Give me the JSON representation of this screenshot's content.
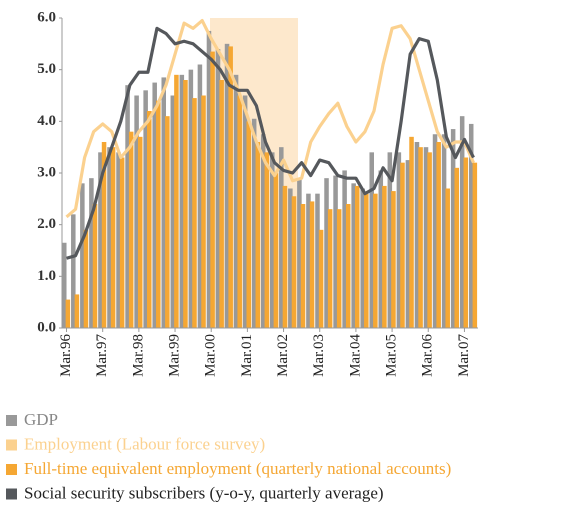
{
  "chart_data": {
    "type": "bar",
    "categories": [
      "Mar.96",
      null,
      null,
      null,
      "Mar.97",
      null,
      null,
      null,
      "Mar.98",
      null,
      null,
      null,
      "Mar.99",
      null,
      null,
      null,
      "Mar.00",
      null,
      null,
      null,
      "Mar.01",
      null,
      null,
      null,
      "Mar.02",
      null,
      null,
      null,
      "Mar.03",
      null,
      null,
      null,
      "Mar.04",
      null,
      null,
      null,
      "Mar.05",
      null,
      null,
      null,
      "Mar.06",
      null,
      null,
      null,
      "Mar.07",
      null
    ],
    "ylim": [
      0,
      6
    ],
    "yticks": [
      {
        "value": 0,
        "label": "0.0"
      },
      {
        "value": 1,
        "label": "1.0"
      },
      {
        "value": 2,
        "label": "2.0"
      },
      {
        "value": 3,
        "label": "3.0"
      },
      {
        "value": 4,
        "label": "4.0"
      },
      {
        "value": 5,
        "label": "5.0"
      },
      {
        "value": 6,
        "label": "6.0"
      }
    ],
    "grid": false,
    "series": [
      {
        "name": "GDP",
        "type": "bar",
        "color": "#999999",
        "values": [
          1.65,
          2.2,
          2.8,
          2.9,
          3.4,
          3.5,
          3.4,
          4.7,
          4.5,
          4.6,
          4.75,
          4.85,
          4.5,
          4.9,
          5.0,
          5.1,
          5.75,
          5.4,
          5.5,
          4.9,
          4.5,
          4.05,
          3.75,
          3.4,
          3.5,
          2.7,
          2.9,
          2.6,
          2.6,
          2.9,
          2.95,
          3.05,
          2.8,
          2.7,
          3.4,
          3.05,
          3.4,
          3.4,
          3.25,
          3.6,
          3.5,
          3.75,
          3.75,
          3.85,
          4.1,
          3.95
        ]
      },
      {
        "name": "Employment (Labour force survey)",
        "type": "line",
        "color": "#fbd18f",
        "values": [
          2.15,
          2.3,
          3.3,
          3.8,
          3.95,
          3.8,
          3.3,
          3.5,
          3.8,
          4.0,
          4.3,
          4.7,
          5.3,
          5.9,
          5.8,
          5.95,
          5.6,
          5.3,
          5.0,
          4.6,
          4.1,
          3.6,
          3.2,
          2.95,
          3.25,
          2.85,
          2.9,
          3.6,
          3.9,
          4.15,
          4.35,
          3.9,
          3.6,
          3.8,
          4.2,
          5.1,
          5.8,
          5.85,
          5.6,
          5.0,
          4.4,
          3.8,
          3.5,
          3.6,
          3.6,
          3.2
        ]
      },
      {
        "name": "Full-time equivalent employment (quarterly national accounts)",
        "type": "bar",
        "color": "#f5a733",
        "values": [
          0.55,
          0.65,
          1.9,
          2.4,
          3.6,
          3.5,
          3.3,
          3.8,
          3.7,
          4.2,
          4.4,
          4.1,
          4.9,
          4.8,
          4.45,
          4.5,
          5.35,
          4.8,
          5.45,
          4.5,
          4.0,
          3.6,
          3.4,
          3.0,
          2.75,
          2.55,
          2.4,
          2.45,
          1.9,
          2.3,
          2.3,
          2.4,
          2.75,
          2.6,
          2.6,
          2.75,
          2.65,
          3.2,
          3.7,
          3.5,
          3.4,
          3.6,
          2.7,
          3.1,
          3.3,
          3.2
        ]
      },
      {
        "name": "Social security subscribers (y-o-y, quarterly average)",
        "type": "line",
        "color": "#55585c",
        "values": [
          1.35,
          1.4,
          1.8,
          2.3,
          3.0,
          3.5,
          4.0,
          4.7,
          4.95,
          4.95,
          5.8,
          5.7,
          5.5,
          5.55,
          5.5,
          5.35,
          5.2,
          5.0,
          4.7,
          4.6,
          4.6,
          4.3,
          3.6,
          3.2,
          3.05,
          3.0,
          3.2,
          2.95,
          3.25,
          3.2,
          2.95,
          2.9,
          2.9,
          2.6,
          2.7,
          3.1,
          2.85,
          4.0,
          5.3,
          5.6,
          5.55,
          4.8,
          3.7,
          3.3,
          3.65,
          3.3
        ]
      }
    ]
  }
}
